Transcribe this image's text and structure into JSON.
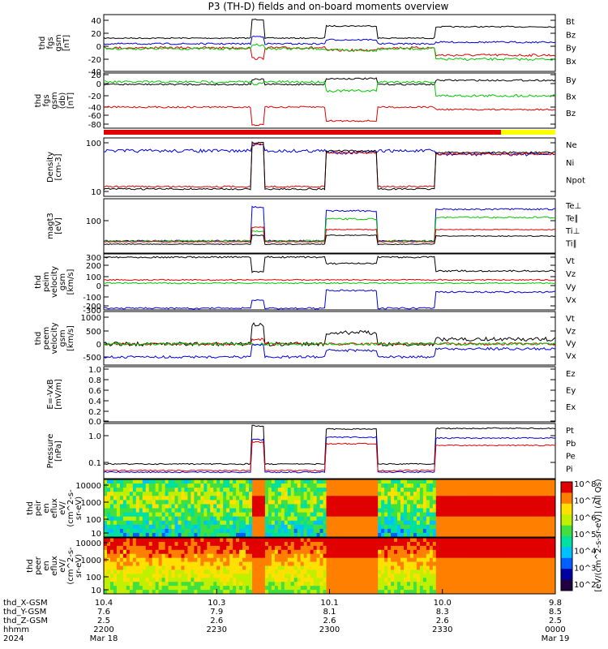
{
  "title": "P3 (TH-D) fields and on-board moments overview",
  "colors": {
    "black": "#000000",
    "red": "#e00000",
    "green": "#00c800",
    "blue": "#0000e0",
    "yellow": "#ffff00"
  },
  "chart_data": {
    "type": "line",
    "x_axis": {
      "rows": [
        {
          "label": "thd_X-GSM",
          "values": [
            "10.4",
            "10.3",
            "10.1",
            "10.0",
            "9.8"
          ]
        },
        {
          "label": "thd_Y-GSM",
          "values": [
            "7.6",
            "7.9",
            "8.1",
            "8.3",
            "8.5"
          ]
        },
        {
          "label": "thd_Z-GSM",
          "values": [
            "2.5",
            "2.6",
            "2.6",
            "2.6",
            "2.5"
          ]
        },
        {
          "label": "hhmm",
          "values": [
            "2200",
            "2230",
            "2300",
            "2330",
            "0000"
          ]
        },
        {
          "label": "2024",
          "values": [
            "Mar 18",
            "",
            "",
            "",
            "Mar 19"
          ]
        }
      ]
    },
    "panels": [
      {
        "ylabel": [
          "thd",
          "fgs",
          "gsm",
          "[nT]"
        ],
        "yticks": [
          "40",
          "20",
          "0",
          "-20",
          "-40"
        ],
        "legend": [
          {
            "text": "Bt",
            "color": "black"
          },
          {
            "text": "Bz",
            "color": "red"
          },
          {
            "text": "By",
            "color": "green"
          },
          {
            "text": "Bx",
            "color": "blue"
          }
        ]
      },
      {
        "ylabel": [
          "thd",
          "fgs",
          "gsm",
          "(db)",
          "[nT]"
        ],
        "yticks": [
          "20",
          "0",
          "-20",
          "-40",
          "-60",
          "-80"
        ],
        "legend": [
          {
            "text": "By",
            "color": "green"
          },
          {
            "text": "Bx",
            "color": "black"
          },
          {
            "text": "Bz",
            "color": "red"
          }
        ]
      },
      {
        "ylabel": [
          "Density",
          "[cm-3]"
        ],
        "yticks": [
          "100",
          "10"
        ],
        "log": true,
        "legend": [
          {
            "text": "Ne",
            "color": "red"
          },
          {
            "text": "Ni",
            "color": "black"
          },
          {
            "text": "Npot",
            "color": "blue"
          }
        ]
      },
      {
        "ylabel": [
          "magt3",
          "[eV]"
        ],
        "yticks": [
          "100"
        ],
        "log": true,
        "legend": [
          {
            "text": "Te⊥",
            "color": "red"
          },
          {
            "text": "Te∥",
            "color": "black"
          },
          {
            "text": "Ti⊥",
            "color": "red"
          },
          {
            "text": "Ti∥",
            "color": "green"
          }
        ]
      },
      {
        "ylabel": [
          "thd",
          "peim",
          "velocity",
          "gsm",
          "[km/s]"
        ],
        "yticks": [
          "300",
          "200",
          "100",
          "0",
          "-100",
          "-200",
          "-300"
        ],
        "legend": [
          {
            "text": "Vt",
            "color": "black"
          },
          {
            "text": "Vz",
            "color": "red"
          },
          {
            "text": "Vy",
            "color": "green"
          },
          {
            "text": "Vx",
            "color": "blue"
          }
        ]
      },
      {
        "ylabel": [
          "thd",
          "peem",
          "velocity",
          "gsm",
          "[km/s]"
        ],
        "yticks": [
          "1000",
          "500",
          "0",
          "-500"
        ],
        "legend": [
          {
            "text": "Vt",
            "color": "black"
          },
          {
            "text": "Vz",
            "color": "red"
          },
          {
            "text": "Vy",
            "color": "green"
          },
          {
            "text": "Vx",
            "color": "blue"
          }
        ]
      },
      {
        "ylabel": [
          "E=-VxB",
          "[mV/m]"
        ],
        "yticks": [
          "1.0",
          "0.8",
          "0.6",
          "0.4",
          "0.2",
          "0.0"
        ],
        "legend": [
          {
            "text": "Ez",
            "color": "red"
          },
          {
            "text": "Ey",
            "color": "green"
          },
          {
            "text": "Ex",
            "color": "blue"
          }
        ]
      },
      {
        "ylabel": [
          "Pressure",
          "[nPa]"
        ],
        "yticks": [
          "1.0",
          "0.1"
        ],
        "log": true,
        "legend": [
          {
            "text": "Pt",
            "color": "black"
          },
          {
            "text": "Pb",
            "color": "red"
          },
          {
            "text": "Pe",
            "color": "green"
          },
          {
            "text": "Pi",
            "color": "blue"
          }
        ]
      },
      {
        "ylabel": [
          "thd",
          "peir",
          "en",
          "eflux",
          "eV/",
          "(cm^2-s-",
          "sr-eV)"
        ],
        "yticks": [
          "10000",
          "1000",
          "100",
          "10"
        ],
        "spectrogram": true
      },
      {
        "ylabel": [
          "thd",
          "peer",
          "en",
          "eflux",
          "eV/",
          "(cm^2-s-",
          "sr-eV)"
        ],
        "yticks": [
          "10000",
          "1000",
          "100",
          "10"
        ],
        "spectrogram": true
      }
    ],
    "colorbar": {
      "ticks": [
        "10^8",
        "10^7",
        "10^6",
        "10^5",
        "10^4",
        "10^3",
        "10^2"
      ],
      "label": "[eV/(cm^2-s-sr-eV)] (All Qs)",
      "label2": "eV/(cm^2-s-sr-eV)"
    }
  }
}
